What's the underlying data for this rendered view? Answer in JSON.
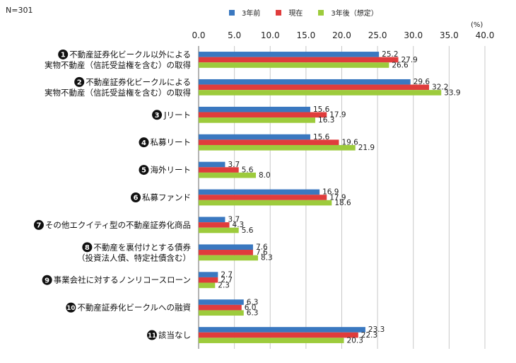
{
  "header": {
    "sample_note": "N=301",
    "unit": "(%)"
  },
  "colors": {
    "series": [
      "#3a78c0",
      "#e03c3c",
      "#9dcb3c"
    ],
    "grid": "#c8c8c8",
    "badge": "#111111"
  },
  "chart_data": {
    "type": "bar",
    "orientation": "horizontal",
    "title": "",
    "xlabel": "",
    "ylabel": "",
    "xlim": [
      0,
      40
    ],
    "ticks": [
      "0.0",
      "5.0",
      "10.0",
      "15.0",
      "20.0",
      "25.0",
      "30.0",
      "35.0",
      "40.0"
    ],
    "tick_values": [
      0,
      5,
      10,
      15,
      20,
      25,
      30,
      35,
      40
    ],
    "grid": true,
    "legend_position": "top",
    "categories": [
      {
        "num": "1",
        "lines": [
          "不動産証券化ビークル以外による",
          "実物不動産（信託受益権を含む）の取得"
        ]
      },
      {
        "num": "2",
        "lines": [
          "不動産証券化ビークルによる",
          "実物不動産（信託受益権を含む）の取得"
        ]
      },
      {
        "num": "3",
        "lines": [
          "Jリート"
        ]
      },
      {
        "num": "4",
        "lines": [
          "私募リート"
        ]
      },
      {
        "num": "5",
        "lines": [
          "海外リート"
        ]
      },
      {
        "num": "6",
        "lines": [
          "私募ファンド"
        ]
      },
      {
        "num": "7",
        "lines": [
          "その他エクイティ型の不動産証券化商品"
        ]
      },
      {
        "num": "8",
        "lines": [
          "不動産を裏付けとする債券",
          "（投資法人債、特定社債含む）"
        ]
      },
      {
        "num": "9",
        "lines": [
          "事業会社に対するノンリコースローン"
        ]
      },
      {
        "num": "10",
        "lines": [
          "不動産証券化ビークルへの融資"
        ]
      },
      {
        "num": "11",
        "lines": [
          "該当なし"
        ]
      }
    ],
    "series": [
      {
        "name": "3年前",
        "values": [
          25.2,
          29.6,
          15.6,
          15.6,
          3.7,
          16.9,
          3.7,
          7.6,
          2.7,
          6.3,
          23.3
        ]
      },
      {
        "name": "現在",
        "values": [
          27.9,
          32.2,
          17.9,
          19.6,
          5.6,
          17.9,
          4.3,
          7.6,
          2.7,
          6.0,
          22.3
        ]
      },
      {
        "name": "3年後（想定）",
        "values": [
          26.6,
          33.9,
          16.3,
          21.9,
          8.0,
          18.6,
          5.6,
          8.3,
          2.3,
          6.3,
          20.3
        ]
      }
    ]
  }
}
